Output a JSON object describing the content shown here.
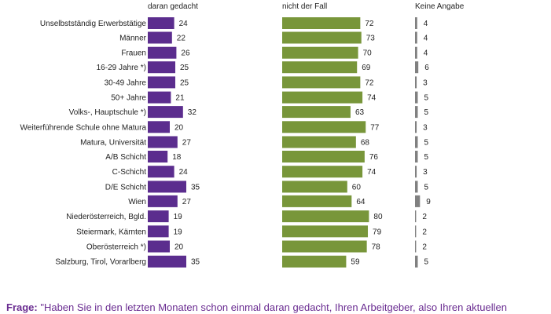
{
  "chart_data": {
    "type": "bar",
    "orientation": "horizontal",
    "series": [
      {
        "name": "daran gedacht",
        "color": "#5b2d8e",
        "values": [
          24,
          22,
          26,
          25,
          25,
          21,
          32,
          20,
          27,
          18,
          24,
          35,
          27,
          19,
          19,
          20,
          35
        ]
      },
      {
        "name": "nicht der Fall",
        "color": "#78963a",
        "values": [
          72,
          73,
          70,
          69,
          72,
          74,
          63,
          77,
          68,
          76,
          74,
          60,
          64,
          80,
          79,
          78,
          59
        ]
      },
      {
        "name": "Keine Angabe",
        "color": "#808080",
        "values": [
          4,
          4,
          4,
          6,
          3,
          5,
          5,
          3,
          5,
          5,
          3,
          5,
          9,
          2,
          2,
          2,
          5
        ]
      }
    ],
    "categories": [
      "Unselbstständig Erwerbstätige",
      "Männer",
      "Frauen",
      "16-29 Jahre *)",
      "30-49 Jahre",
      "50+ Jahre",
      "Volks-, Hauptschule *)",
      "Weiterführende Schule ohne Matura",
      "Matura, Universität",
      "A/B Schicht",
      "C-Schicht",
      "D/E Schicht",
      "Wien",
      "Niederösterreich, Bgld.",
      "Steiermark, Kärnten",
      "Oberösterreich *)",
      "Salzburg, Tirol, Vorarlberg"
    ],
    "groups": [
      [
        0
      ],
      [
        1,
        2
      ],
      [
        3,
        4,
        5
      ],
      [
        6,
        7,
        8
      ],
      [
        9,
        10,
        11
      ],
      [
        12,
        13,
        14,
        15,
        16
      ]
    ],
    "title": "",
    "xlabel": "",
    "ylabel": "",
    "grid": false,
    "legend": "column headers"
  },
  "question": {
    "label": "Frage:",
    "text": " \"Haben Sie in den letzten Monaten schon einmal daran gedacht, Ihren Arbeitgeber, also Ihren aktuellen"
  }
}
